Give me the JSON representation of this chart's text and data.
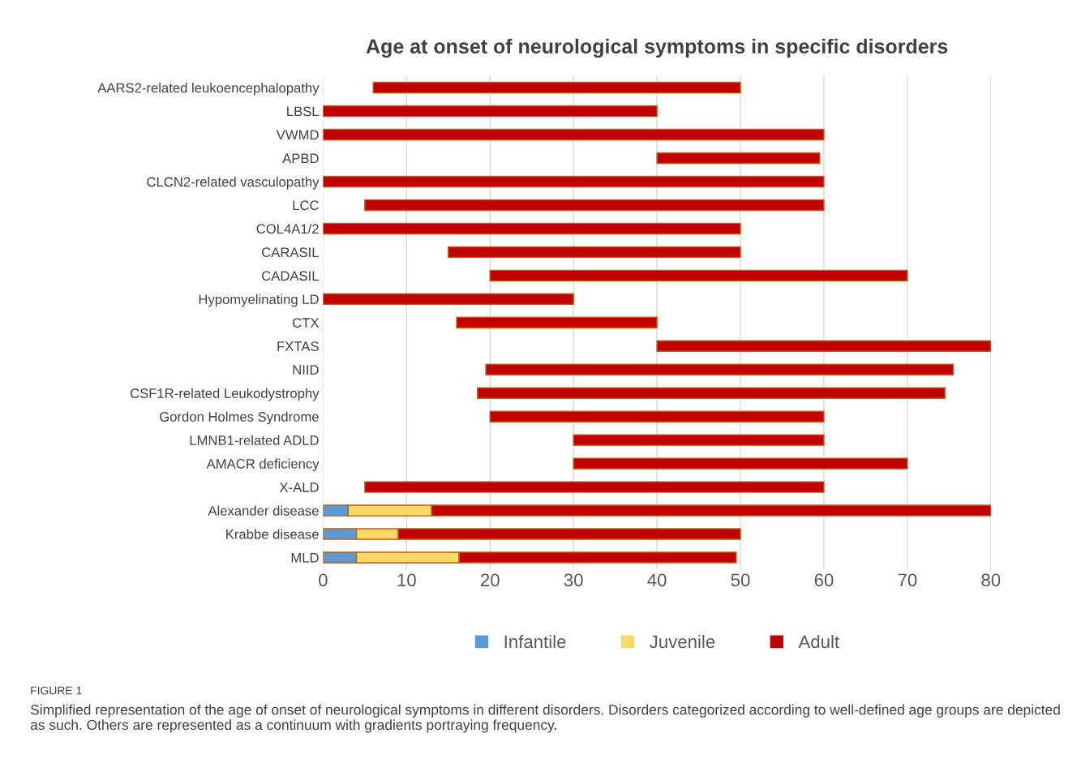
{
  "chart_data": {
    "type": "bar",
    "orientation": "horizontal",
    "title": "Age at onset of neurological symptoms in specific disorders",
    "categories": [
      "AARS2-related leukoencephalopathy",
      "LBSL",
      "VWMD",
      "APBD",
      "CLCN2-related vasculopathy",
      "LCC",
      "COL4A1/2",
      "CARASIL",
      "CADASIL",
      "Hypomyelinating LD",
      "CTX",
      "FXTAS",
      "NIID",
      "CSF1R-related Leukodystrophy",
      "Gordon Holmes Syndrome",
      "LMNB1-related ADLD",
      "AMACR deficiency",
      "X-ALD",
      "Alexander disease",
      "Krabbe disease",
      "MLD"
    ],
    "series": [
      {
        "name": "Infantile",
        "color": "#5b9bd5",
        "base": [
          null,
          null,
          null,
          null,
          null,
          null,
          null,
          null,
          null,
          null,
          null,
          null,
          null,
          null,
          null,
          null,
          null,
          null,
          0,
          0,
          0
        ],
        "values": [
          null,
          null,
          null,
          null,
          null,
          null,
          null,
          null,
          null,
          null,
          null,
          null,
          null,
          null,
          null,
          null,
          null,
          null,
          3,
          4,
          4
        ]
      },
      {
        "name": "Juvenile",
        "color": "#ffd966",
        "base": [
          null,
          null,
          null,
          null,
          null,
          null,
          null,
          null,
          null,
          null,
          null,
          null,
          null,
          null,
          null,
          null,
          null,
          null,
          3,
          4,
          4
        ],
        "values": [
          null,
          null,
          null,
          null,
          null,
          null,
          null,
          null,
          null,
          null,
          null,
          null,
          null,
          null,
          null,
          null,
          null,
          null,
          10,
          5,
          12.3
        ]
      },
      {
        "name": "Adult",
        "color": "#c00000",
        "base": [
          6,
          0,
          0,
          40,
          0,
          5,
          0,
          15,
          20,
          0,
          16,
          40,
          19.5,
          18.5,
          20,
          30,
          30,
          5,
          13,
          9,
          16.3
        ],
        "values": [
          44,
          40,
          60,
          19.5,
          60,
          55,
          50,
          35,
          50,
          30,
          24,
          40,
          56,
          56,
          40,
          30,
          40,
          55,
          67,
          41,
          33.2
        ]
      }
    ],
    "xlim": [
      0,
      80
    ],
    "xticks": [
      0,
      10,
      20,
      30,
      40,
      50,
      60,
      70,
      80
    ],
    "grid": "x",
    "legend": "bottom",
    "annotations": [
      "FIGURE 1",
      "Simplified representation of the age of onset of neurological symptoms in different disorders. Disorders categorized according to well-defined age groups are depicted as such. Others are represented as a continuum with gradients portraying frequency."
    ]
  }
}
